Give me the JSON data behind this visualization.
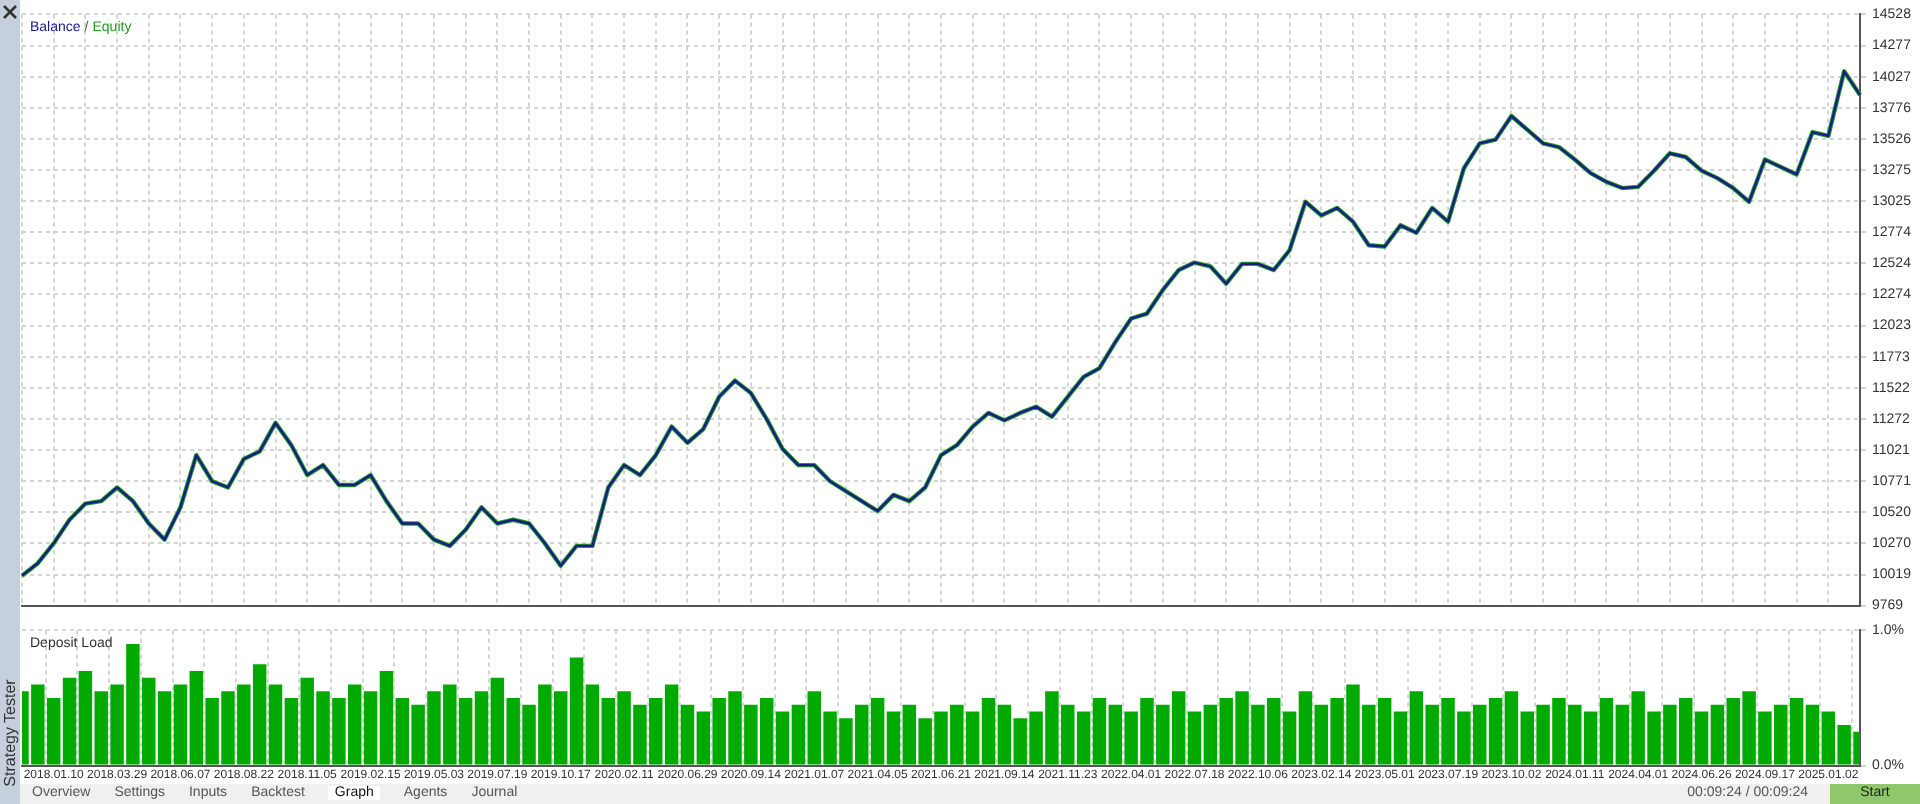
{
  "chart_data": [
    {
      "type": "line",
      "legend": "top left",
      "annotations": [
        "/"
      ],
      "grid": true,
      "tick_labels": "y",
      "marker": "none",
      "line_style": "solid",
      "categories": [
        null,
        null,
        "2018.01.10",
        null,
        null,
        null,
        "2018.03.29",
        null,
        null,
        null,
        "2018.06.07",
        null,
        null,
        null,
        "2018.08.22",
        null,
        null,
        null,
        "2018.11.05",
        null,
        null,
        null,
        "2019.02.15",
        null,
        null,
        null,
        "2019.05.03",
        null,
        null,
        null,
        "2019.07.19",
        null,
        null,
        null,
        "2019.10.17",
        null,
        null,
        null,
        "2020.02.11",
        null,
        null,
        null,
        "2020.06.29",
        null,
        null,
        null,
        "2020.09.14",
        null,
        null,
        null,
        "2021.01.07",
        null,
        null,
        null,
        "2021.04.05",
        null,
        null,
        null,
        "2021.06.21",
        null,
        null,
        null,
        "2021.09.14",
        null,
        null,
        null,
        "2021.11.23",
        null,
        null,
        null,
        "2022.04.01",
        null,
        null,
        null,
        "2022.07.18",
        null,
        null,
        null,
        "2022.10.06",
        null,
        null,
        null,
        "2023.02.14",
        null,
        null,
        null,
        "2023.05.01",
        null,
        null,
        null,
        "2023.07.19",
        null,
        null,
        null,
        "2023.10.02",
        null,
        null,
        null,
        "2024.01.11",
        null,
        null,
        null,
        "2024.04.01",
        null,
        null,
        null,
        "2024.06.26",
        null,
        null,
        null,
        "2024.09.17",
        null,
        null,
        null,
        "2025.01.02",
        null,
        null
      ],
      "ylim": [
        9769,
        14528
      ],
      "yticks": [
        14528,
        14277,
        14027,
        13776,
        13526,
        13275,
        13025,
        12774,
        12524,
        12274,
        12023,
        11773,
        11522,
        11272,
        11021,
        10771,
        10520,
        10270,
        10019,
        9769
      ],
      "series": [
        {
          "name": "Balance",
          "color": "#1a1a8c",
          "values": [
            10010,
            10110,
            10270,
            10460,
            10590,
            10610,
            10720,
            10610,
            10430,
            10300,
            10560,
            10980,
            10770,
            10720,
            10950,
            11010,
            11240,
            11060,
            10820,
            10900,
            10740,
            10740,
            10820,
            10610,
            10430,
            10430,
            10300,
            10250,
            10380,
            10560,
            10430,
            10460,
            10430,
            10270,
            10090,
            10250,
            10250,
            10720,
            10900,
            10820,
            10980,
            11210,
            11080,
            11190,
            11450,
            11580,
            11480,
            11270,
            11030,
            10900,
            10900,
            10770,
            10690,
            10610,
            10530,
            10660,
            10610,
            10720,
            10980,
            11060,
            11210,
            11320,
            11260,
            11320,
            11370,
            11290,
            11450,
            11610,
            11680,
            11890,
            12080,
            12120,
            12310,
            12470,
            12530,
            12500,
            12360,
            12520,
            12520,
            12470,
            12630,
            13020,
            12910,
            12970,
            12860,
            12670,
            12660,
            12830,
            12770,
            12970,
            12860,
            13290,
            13490,
            13520,
            13710,
            13600,
            13490,
            13460,
            13360,
            13250,
            13180,
            13130,
            13140,
            13270,
            13410,
            13380,
            13270,
            13210,
            13130,
            13020,
            13360,
            13300,
            13240,
            13580,
            13550,
            14070,
            13880
          ]
        },
        {
          "name": "Equity",
          "color": "#1fa01f",
          "values": [
            10010,
            10110,
            10270,
            10460,
            10590,
            10610,
            10720,
            10610,
            10430,
            10300,
            10560,
            10980,
            10770,
            10720,
            10950,
            11010,
            11240,
            11060,
            10820,
            10900,
            10740,
            10740,
            10820,
            10610,
            10430,
            10430,
            10300,
            10250,
            10380,
            10560,
            10430,
            10460,
            10430,
            10270,
            10090,
            10250,
            10250,
            10720,
            10900,
            10820,
            10980,
            11210,
            11080,
            11190,
            11450,
            11580,
            11480,
            11270,
            11030,
            10900,
            10900,
            10770,
            10690,
            10610,
            10530,
            10660,
            10610,
            10720,
            10980,
            11060,
            11210,
            11320,
            11260,
            11320,
            11370,
            11290,
            11450,
            11610,
            11680,
            11890,
            12080,
            12120,
            12310,
            12470,
            12530,
            12500,
            12360,
            12520,
            12520,
            12470,
            12630,
            13020,
            12910,
            12970,
            12860,
            12670,
            12660,
            12830,
            12770,
            12970,
            12860,
            13290,
            13490,
            13520,
            13710,
            13600,
            13490,
            13460,
            13360,
            13250,
            13180,
            13130,
            13140,
            13270,
            13410,
            13380,
            13270,
            13210,
            13130,
            13020,
            13360,
            13300,
            13240,
            13580,
            13550,
            14070,
            13880
          ]
        }
      ]
    },
    {
      "type": "bar",
      "title": "Deposit Load",
      "grid": true,
      "legend": false,
      "categories": [
        null,
        null,
        "2018.01.10",
        null,
        null,
        null,
        "2018.03.29",
        null,
        null,
        null,
        "2018.06.07",
        null,
        null,
        null,
        "2018.08.22",
        null,
        null,
        null,
        "2018.11.05",
        null,
        null,
        null,
        "2019.02.15",
        null,
        null,
        null,
        "2019.05.03",
        null,
        null,
        null,
        "2019.07.19",
        null,
        null,
        null,
        "2019.10.17",
        null,
        null,
        null,
        "2020.02.11",
        null,
        null,
        null,
        "2020.06.29",
        null,
        null,
        null,
        "2020.09.14",
        null,
        null,
        null,
        "2021.01.07",
        null,
        null,
        null,
        "2021.04.05",
        null,
        null,
        null,
        "2021.06.21",
        null,
        null,
        null,
        "2021.09.14",
        null,
        null,
        null,
        "2021.11.23",
        null,
        null,
        null,
        "2022.04.01",
        null,
        null,
        null,
        "2022.07.18",
        null,
        null,
        null,
        "2022.10.06",
        null,
        null,
        null,
        "2023.02.14",
        null,
        null,
        null,
        "2023.05.01",
        null,
        null,
        null,
        "2023.07.19",
        null,
        null,
        null,
        "2023.10.02",
        null,
        null,
        null,
        "2024.01.11",
        null,
        null,
        null,
        "2024.04.01",
        null,
        null,
        null,
        "2024.06.26",
        null,
        null,
        null,
        "2024.09.17",
        null,
        null,
        null,
        "2025.01.02",
        null,
        null
      ],
      "ylim": [
        0,
        1
      ],
      "yticks": [
        {
          "value": 1,
          "label": "1.0%"
        },
        {
          "value": 0,
          "label": "0.0%"
        }
      ],
      "values": [
        0.55,
        0.6,
        0.5,
        0.65,
        0.7,
        0.55,
        0.6,
        0.9,
        0.65,
        0.55,
        0.6,
        0.7,
        0.5,
        0.55,
        0.6,
        0.75,
        0.6,
        0.5,
        0.65,
        0.55,
        0.5,
        0.6,
        0.55,
        0.7,
        0.5,
        0.45,
        0.55,
        0.6,
        0.5,
        0.55,
        0.65,
        0.5,
        0.45,
        0.6,
        0.55,
        0.8,
        0.6,
        0.5,
        0.55,
        0.45,
        0.5,
        0.6,
        0.45,
        0.4,
        0.5,
        0.55,
        0.45,
        0.5,
        0.4,
        0.45,
        0.55,
        0.4,
        0.35,
        0.45,
        0.5,
        0.4,
        0.45,
        0.35,
        0.4,
        0.45,
        0.4,
        0.5,
        0.45,
        0.35,
        0.4,
        0.55,
        0.45,
        0.4,
        0.5,
        0.45,
        0.4,
        0.5,
        0.45,
        0.55,
        0.4,
        0.45,
        0.5,
        0.55,
        0.45,
        0.5,
        0.4,
        0.55,
        0.45,
        0.5,
        0.6,
        0.45,
        0.5,
        0.4,
        0.55,
        0.45,
        0.5,
        0.4,
        0.45,
        0.5,
        0.55,
        0.4,
        0.45,
        0.5,
        0.45,
        0.4,
        0.5,
        0.45,
        0.55,
        0.4,
        0.45,
        0.5,
        0.4,
        0.45,
        0.5,
        0.55,
        0.4,
        0.45,
        0.5,
        0.45,
        0.4,
        0.3,
        0.25
      ],
      "color": "#00aa00",
      "annotations": [
        "Strategy Tester",
        "Overview",
        "Settings",
        "Inputs",
        "Backtest",
        "Graph",
        "Agents",
        "Journal",
        "00:09:24 / 00:09:24",
        "Start"
      ]
    }
  ]
}
